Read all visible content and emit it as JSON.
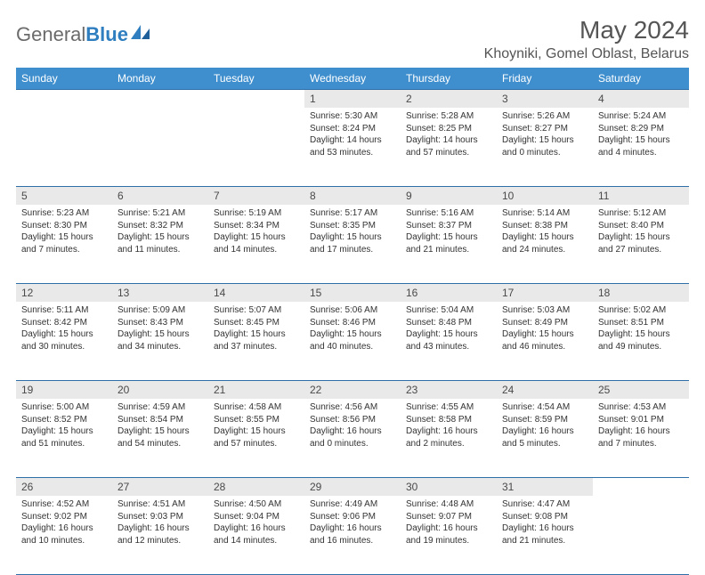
{
  "brand": {
    "part1": "General",
    "part2": "Blue"
  },
  "header": {
    "title": "May 2024",
    "location": "Khoyniki, Gomel Oblast, Belarus"
  },
  "colors": {
    "header_bg": "#3f8fce",
    "header_text": "#ffffff",
    "daynum_bg": "#e9e9e9",
    "border": "#2f6fa8",
    "text": "#333333",
    "title": "#555555"
  },
  "weekdays": [
    "Sunday",
    "Monday",
    "Tuesday",
    "Wednesday",
    "Thursday",
    "Friday",
    "Saturday"
  ],
  "weeks": [
    [
      null,
      null,
      null,
      {
        "n": "1",
        "sr": "Sunrise: 5:30 AM",
        "ss": "Sunset: 8:24 PM",
        "dl": "Daylight: 14 hours and 53 minutes."
      },
      {
        "n": "2",
        "sr": "Sunrise: 5:28 AM",
        "ss": "Sunset: 8:25 PM",
        "dl": "Daylight: 14 hours and 57 minutes."
      },
      {
        "n": "3",
        "sr": "Sunrise: 5:26 AM",
        "ss": "Sunset: 8:27 PM",
        "dl": "Daylight: 15 hours and 0 minutes."
      },
      {
        "n": "4",
        "sr": "Sunrise: 5:24 AM",
        "ss": "Sunset: 8:29 PM",
        "dl": "Daylight: 15 hours and 4 minutes."
      }
    ],
    [
      {
        "n": "5",
        "sr": "Sunrise: 5:23 AM",
        "ss": "Sunset: 8:30 PM",
        "dl": "Daylight: 15 hours and 7 minutes."
      },
      {
        "n": "6",
        "sr": "Sunrise: 5:21 AM",
        "ss": "Sunset: 8:32 PM",
        "dl": "Daylight: 15 hours and 11 minutes."
      },
      {
        "n": "7",
        "sr": "Sunrise: 5:19 AM",
        "ss": "Sunset: 8:34 PM",
        "dl": "Daylight: 15 hours and 14 minutes."
      },
      {
        "n": "8",
        "sr": "Sunrise: 5:17 AM",
        "ss": "Sunset: 8:35 PM",
        "dl": "Daylight: 15 hours and 17 minutes."
      },
      {
        "n": "9",
        "sr": "Sunrise: 5:16 AM",
        "ss": "Sunset: 8:37 PM",
        "dl": "Daylight: 15 hours and 21 minutes."
      },
      {
        "n": "10",
        "sr": "Sunrise: 5:14 AM",
        "ss": "Sunset: 8:38 PM",
        "dl": "Daylight: 15 hours and 24 minutes."
      },
      {
        "n": "11",
        "sr": "Sunrise: 5:12 AM",
        "ss": "Sunset: 8:40 PM",
        "dl": "Daylight: 15 hours and 27 minutes."
      }
    ],
    [
      {
        "n": "12",
        "sr": "Sunrise: 5:11 AM",
        "ss": "Sunset: 8:42 PM",
        "dl": "Daylight: 15 hours and 30 minutes."
      },
      {
        "n": "13",
        "sr": "Sunrise: 5:09 AM",
        "ss": "Sunset: 8:43 PM",
        "dl": "Daylight: 15 hours and 34 minutes."
      },
      {
        "n": "14",
        "sr": "Sunrise: 5:07 AM",
        "ss": "Sunset: 8:45 PM",
        "dl": "Daylight: 15 hours and 37 minutes."
      },
      {
        "n": "15",
        "sr": "Sunrise: 5:06 AM",
        "ss": "Sunset: 8:46 PM",
        "dl": "Daylight: 15 hours and 40 minutes."
      },
      {
        "n": "16",
        "sr": "Sunrise: 5:04 AM",
        "ss": "Sunset: 8:48 PM",
        "dl": "Daylight: 15 hours and 43 minutes."
      },
      {
        "n": "17",
        "sr": "Sunrise: 5:03 AM",
        "ss": "Sunset: 8:49 PM",
        "dl": "Daylight: 15 hours and 46 minutes."
      },
      {
        "n": "18",
        "sr": "Sunrise: 5:02 AM",
        "ss": "Sunset: 8:51 PM",
        "dl": "Daylight: 15 hours and 49 minutes."
      }
    ],
    [
      {
        "n": "19",
        "sr": "Sunrise: 5:00 AM",
        "ss": "Sunset: 8:52 PM",
        "dl": "Daylight: 15 hours and 51 minutes."
      },
      {
        "n": "20",
        "sr": "Sunrise: 4:59 AM",
        "ss": "Sunset: 8:54 PM",
        "dl": "Daylight: 15 hours and 54 minutes."
      },
      {
        "n": "21",
        "sr": "Sunrise: 4:58 AM",
        "ss": "Sunset: 8:55 PM",
        "dl": "Daylight: 15 hours and 57 minutes."
      },
      {
        "n": "22",
        "sr": "Sunrise: 4:56 AM",
        "ss": "Sunset: 8:56 PM",
        "dl": "Daylight: 16 hours and 0 minutes."
      },
      {
        "n": "23",
        "sr": "Sunrise: 4:55 AM",
        "ss": "Sunset: 8:58 PM",
        "dl": "Daylight: 16 hours and 2 minutes."
      },
      {
        "n": "24",
        "sr": "Sunrise: 4:54 AM",
        "ss": "Sunset: 8:59 PM",
        "dl": "Daylight: 16 hours and 5 minutes."
      },
      {
        "n": "25",
        "sr": "Sunrise: 4:53 AM",
        "ss": "Sunset: 9:01 PM",
        "dl": "Daylight: 16 hours and 7 minutes."
      }
    ],
    [
      {
        "n": "26",
        "sr": "Sunrise: 4:52 AM",
        "ss": "Sunset: 9:02 PM",
        "dl": "Daylight: 16 hours and 10 minutes."
      },
      {
        "n": "27",
        "sr": "Sunrise: 4:51 AM",
        "ss": "Sunset: 9:03 PM",
        "dl": "Daylight: 16 hours and 12 minutes."
      },
      {
        "n": "28",
        "sr": "Sunrise: 4:50 AM",
        "ss": "Sunset: 9:04 PM",
        "dl": "Daylight: 16 hours and 14 minutes."
      },
      {
        "n": "29",
        "sr": "Sunrise: 4:49 AM",
        "ss": "Sunset: 9:06 PM",
        "dl": "Daylight: 16 hours and 16 minutes."
      },
      {
        "n": "30",
        "sr": "Sunrise: 4:48 AM",
        "ss": "Sunset: 9:07 PM",
        "dl": "Daylight: 16 hours and 19 minutes."
      },
      {
        "n": "31",
        "sr": "Sunrise: 4:47 AM",
        "ss": "Sunset: 9:08 PM",
        "dl": "Daylight: 16 hours and 21 minutes."
      },
      null
    ]
  ]
}
